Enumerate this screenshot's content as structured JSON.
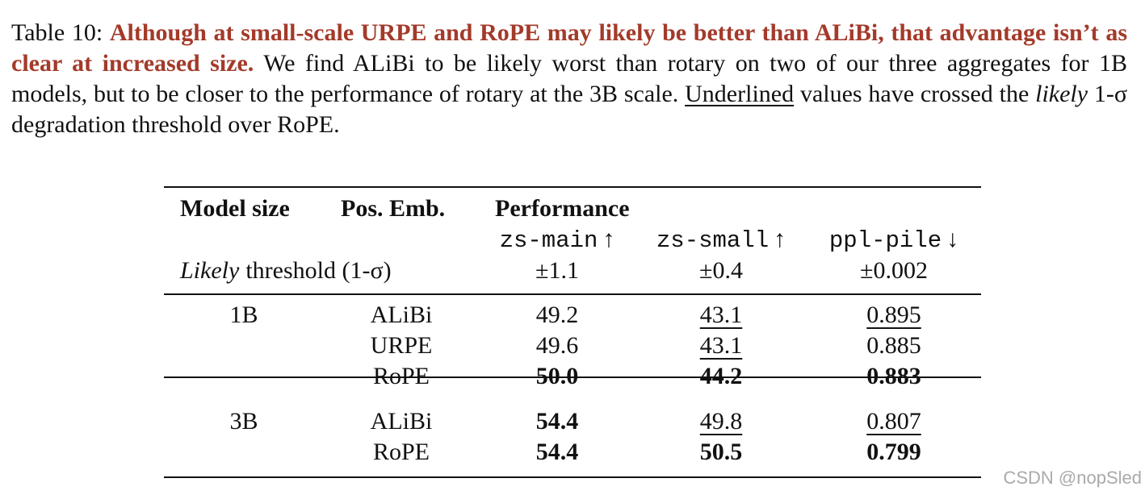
{
  "caption": {
    "label": "Table 10:",
    "highlight": "Although at small-scale URPE and RoPE may likely be better than ALiBi, that advantage isn’t as clear at increased size.",
    "text": "We find ALiBi to be likely worst than rotary on two of our three aggregates for 1B models, but to be closer to the performance of rotary at the 3B scale.",
    "underlined": "Underlined",
    "text2": "values have crossed the",
    "italic": "likely",
    "text3": "1-σ degradation threshold over RoPE."
  },
  "table": {
    "header": {
      "model_size": "Model size",
      "pos_emb": "Pos. Emb.",
      "performance": "Performance",
      "metrics": [
        {
          "name": "zs-main",
          "arrow": "↑"
        },
        {
          "name": "zs-small",
          "arrow": "↑"
        },
        {
          "name": "ppl-pile",
          "arrow": "↓"
        }
      ],
      "threshold_italic": "Likely",
      "threshold_text": "threshold (1-σ)",
      "thresholds": [
        "±1.1",
        "±0.4",
        "±0.002"
      ]
    },
    "groups": [
      {
        "size": "1B",
        "rows": [
          {
            "emb": "ALiBi",
            "cells": [
              {
                "text": "49.2"
              },
              {
                "text": "43.1",
                "underline": true
              },
              {
                "text": "0.895",
                "underline": true
              }
            ]
          },
          {
            "emb": "URPE",
            "cells": [
              {
                "text": "49.6"
              },
              {
                "text": "43.1",
                "underline": true
              },
              {
                "text": "0.885"
              }
            ]
          },
          {
            "emb": "RoPE",
            "cells": [
              {
                "text": "50.0",
                "bold": true
              },
              {
                "text": "44.2",
                "bold": true
              },
              {
                "text": "0.883",
                "bold": true
              }
            ]
          }
        ]
      },
      {
        "size": "3B",
        "rows": [
          {
            "emb": "ALiBi",
            "cells": [
              {
                "text": "54.4",
                "bold": true
              },
              {
                "text": "49.8",
                "underline": true
              },
              {
                "text": "0.807",
                "underline": true
              }
            ]
          },
          {
            "emb": "RoPE",
            "cells": [
              {
                "text": "54.4",
                "bold": true
              },
              {
                "text": "50.5",
                "bold": true
              },
              {
                "text": "0.799",
                "bold": true
              }
            ]
          }
        ]
      }
    ]
  },
  "watermark": "CSDN @nopSled"
}
